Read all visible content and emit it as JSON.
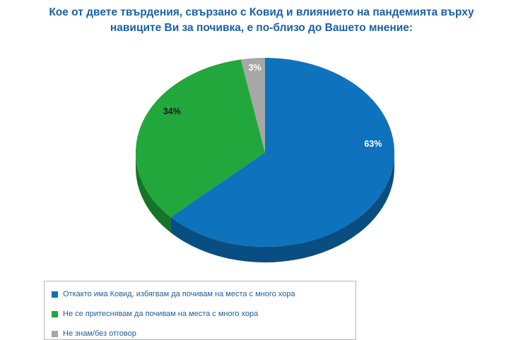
{
  "title": {
    "line1": "Кое от двете твърдения, свързано с Ковид и влиянието на пандемията върху",
    "line2": "навиците Ви за почивка, е по-близо до Вашето мнение:"
  },
  "chart_data": {
    "type": "pie",
    "title": "Кое от двете твърдения, свързано с Ковид и влиянието на пандемията върху навиците Ви за почивка, е по-близо до Вашето мнение:",
    "effect": "3d",
    "start_angle_deg": 0,
    "direction": "clockwise",
    "legend_position": "bottom-left",
    "slices": [
      {
        "label": "Откакто има Ковид, избягвам да почивам на места с много хора",
        "value": 63,
        "display": "63%",
        "color": "#0e72bd",
        "side_color": "#094e80",
        "label_color": "#ffffff",
        "label_angle_deg": 84,
        "label_radius": 0.84
      },
      {
        "label": "Не се притеснявам да почивам на места с много хора",
        "value": 34,
        "display": "34%",
        "color": "#21a73c",
        "side_color": "#167429",
        "label_color": "#1a1a1a",
        "label_angle_deg": 301,
        "label_radius": 0.84
      },
      {
        "label": "Не знам/без отговор",
        "value": 3,
        "display": "3%",
        "color": "#a7a7a7",
        "side_color": "#787878",
        "label_color": "#ffffff",
        "label_angle_deg": 355,
        "label_radius": 0.9
      }
    ]
  }
}
